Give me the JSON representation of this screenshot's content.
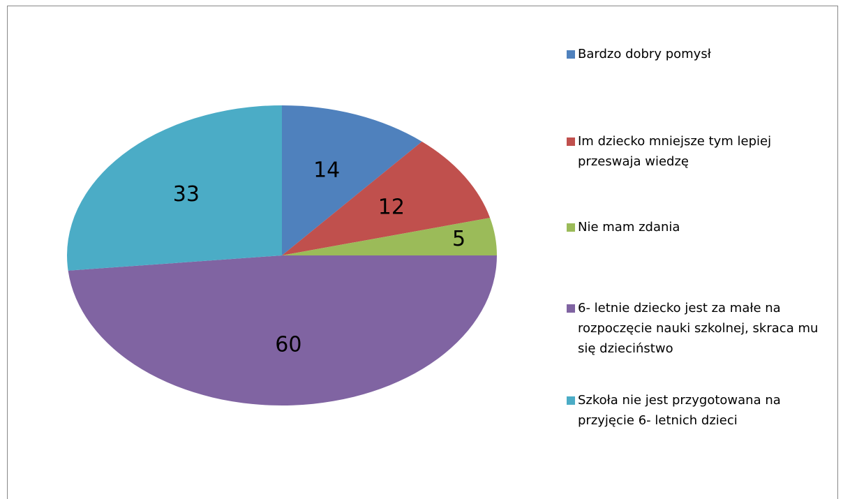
{
  "chart_data": {
    "type": "pie",
    "categories": [
      "Bardzo dobry pomysł",
      "Im dziecko mniejsze tym lepiej przeswaja wiedzę",
      "Nie mam  zdania",
      "6- letnie dziecko jest za małe na rozpoczęcie nauki szkolnej, skraca mu się dzieciństwo",
      "Szkoła nie jest przygotowana na przyjęcie 6- letnich dzieci"
    ],
    "values": [
      14,
      12,
      5,
      60,
      33
    ],
    "colors": [
      "#4f81bd",
      "#c0504d",
      "#9bbb59",
      "#8064a2",
      "#4bacc6"
    ],
    "legend": "right"
  }
}
